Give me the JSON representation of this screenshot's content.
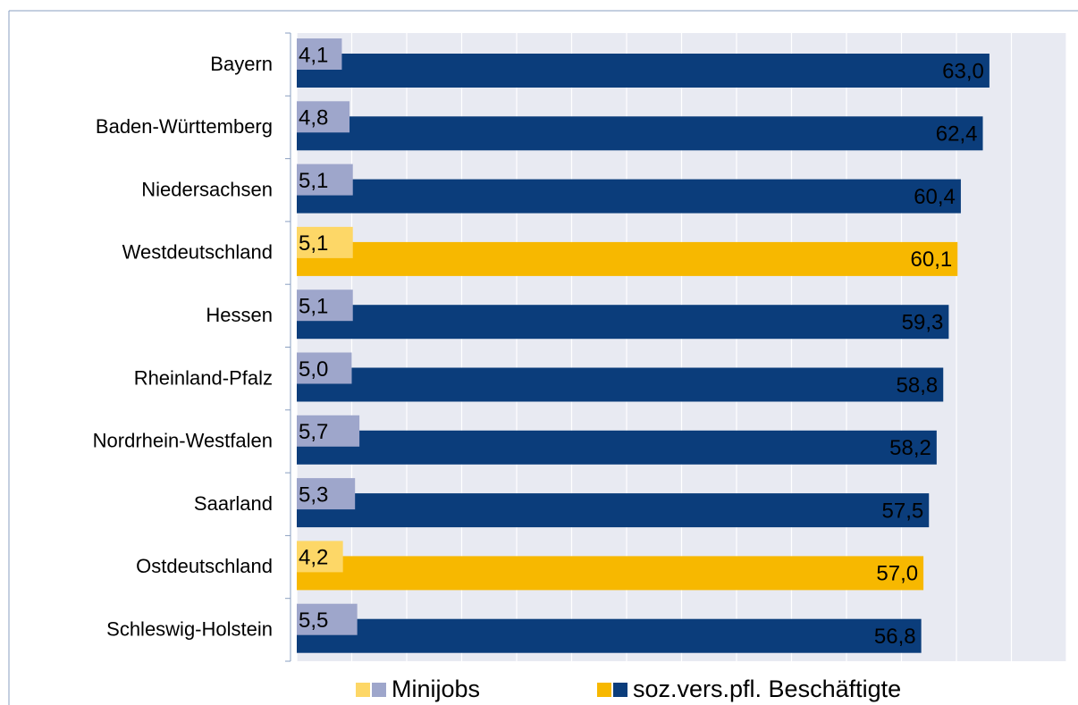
{
  "chart_data": {
    "type": "bar",
    "orientation": "horizontal",
    "categories": [
      "Bayern",
      "Baden-Württemberg",
      "Niedersachsen",
      "Westdeutschland",
      "Hessen",
      "Rheinland-Pfalz",
      "Nordrhein-Westfalen",
      "Saarland",
      "Ostdeutschland",
      "Schleswig-Holstein"
    ],
    "series": [
      {
        "name": "Minijobs",
        "color": "#9ea6cb",
        "highlight_color": "#fdd767",
        "values": [
          4.1,
          4.8,
          5.1,
          5.1,
          5.1,
          5.0,
          5.7,
          5.3,
          4.2,
          5.5
        ],
        "value_labels": [
          "4,1",
          "4,8",
          "5,1",
          "5,1",
          "5,1",
          "5,0",
          "5,7",
          "5,3",
          "4,2",
          "5,5"
        ]
      },
      {
        "name": "soz.vers.pfl. Beschäftigte",
        "color": "#0b3d7b",
        "highlight_color": "#f7b800",
        "values": [
          63.0,
          62.4,
          60.4,
          60.1,
          59.3,
          58.8,
          58.2,
          57.5,
          57.0,
          56.8
        ],
        "value_labels": [
          "63,0",
          "62,4",
          "60,4",
          "60,1",
          "59,3",
          "58,8",
          "58,2",
          "57,5",
          "57,0",
          "56,8"
        ]
      }
    ],
    "highlight": [
      3,
      8
    ],
    "xlim": [
      0,
      70
    ],
    "xticks": [
      0,
      5,
      10,
      15,
      20,
      25,
      30,
      35,
      40,
      45,
      50,
      55,
      60,
      65,
      70
    ],
    "grid": true,
    "legend": "bottom"
  }
}
